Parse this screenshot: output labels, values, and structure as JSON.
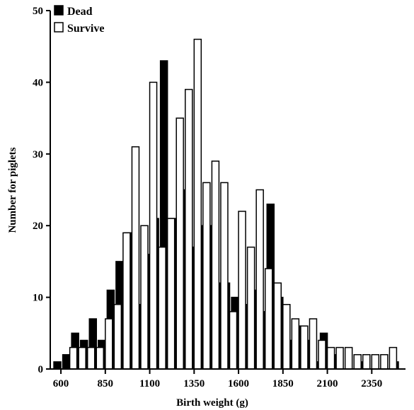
{
  "chart_data": {
    "type": "bar",
    "title": "",
    "xlabel": "Birth weight (g)",
    "ylabel": "Number for piglets",
    "xlim": [
      540,
      2540
    ],
    "ylim": [
      0,
      50
    ],
    "x_ticks": [
      "600",
      "850",
      "1100",
      "1350",
      "1600",
      "1850",
      "2100",
      "2350"
    ],
    "y_ticks": [
      "0",
      "10",
      "20",
      "30",
      "40",
      "50"
    ],
    "bin_width": 50,
    "legend": {
      "placement": "top-left",
      "entries": [
        {
          "label": "Dead",
          "fill": "#000000"
        },
        {
          "label": "Survive",
          "fill": "#ffffff"
        }
      ]
    },
    "series": [
      {
        "name": "Dead",
        "color": "#000000",
        "x": [
          600,
          650,
          700,
          750,
          800,
          850,
          900,
          950,
          1000,
          1050,
          1100,
          1150,
          1200,
          1250,
          1300,
          1350,
          1400,
          1450,
          1500,
          1550,
          1600,
          1650,
          1700,
          1750,
          1800,
          1850,
          1900,
          1950,
          2000,
          2050,
          2100,
          2150,
          2200,
          2250,
          2300,
          2350,
          2400,
          2450,
          2500
        ],
        "values": [
          1,
          2,
          5,
          4,
          7,
          4,
          11,
          15,
          19,
          9,
          16,
          21,
          43,
          21,
          25,
          17,
          20,
          20,
          12,
          12,
          10,
          9,
          11,
          8,
          23,
          10,
          4,
          6,
          4,
          1,
          5,
          2,
          0,
          0,
          1,
          0,
          0,
          0,
          1
        ]
      },
      {
        "name": "Survive",
        "color": "#ffffff",
        "x": [
          650,
          700,
          750,
          800,
          850,
          900,
          950,
          1000,
          1050,
          1100,
          1150,
          1200,
          1250,
          1300,
          1350,
          1400,
          1450,
          1500,
          1550,
          1600,
          1650,
          1700,
          1750,
          1800,
          1850,
          1900,
          1950,
          2000,
          2050,
          2100,
          2150,
          2200,
          2250,
          2300,
          2350,
          2400,
          2450
        ],
        "values": [
          3,
          3,
          3,
          3,
          7,
          9,
          19,
          31,
          20,
          40,
          17,
          21,
          35,
          39,
          46,
          26,
          29,
          26,
          8,
          22,
          17,
          25,
          14,
          12,
          9,
          7,
          6,
          7,
          4,
          3,
          3,
          3,
          2,
          2,
          2,
          2,
          3
        ]
      }
    ]
  }
}
